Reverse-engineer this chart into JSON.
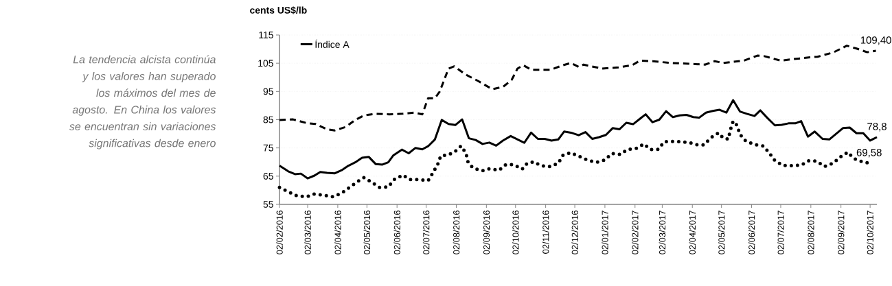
{
  "chart_data": {
    "type": "line",
    "ylabel": "cents US$/lb",
    "annotations": [
      "*La tendencia alcista continúa y los valores han superado los máximos del mes de agosto. En China los valores se encuentran sin variaciones significativas desde enero*",
      {
        "text": "109,40",
        "x": "2017-10-08",
        "y": 109.4
      },
      {
        "text": "78,8",
        "x": "2017-10-09",
        "y": 78.8
      },
      {
        "text": "69,58",
        "x": "2017-10-01",
        "y": 69.58
      }
    ],
    "xlim": [
      "2016-02-02",
      "2017-10-09"
    ],
    "xticks": [
      {
        "value": "2016-02-02",
        "label": "02/02/2016"
      },
      {
        "value": "2016-03-02",
        "label": "02/03/2016"
      },
      {
        "value": "2016-04-02",
        "label": "02/04/2016"
      },
      {
        "value": "2016-05-02",
        "label": "02/05/2016"
      },
      {
        "value": "2016-06-02",
        "label": "02/06/2016"
      },
      {
        "value": "2016-07-02",
        "label": "02/07/2016"
      },
      {
        "value": "2016-08-02",
        "label": "02/08/2016"
      },
      {
        "value": "2016-09-02",
        "label": "02/09/2016"
      },
      {
        "value": "2016-10-02",
        "label": "02/10/2016"
      },
      {
        "value": "2016-11-02",
        "label": "02/11/2016"
      },
      {
        "value": "2016-12-02",
        "label": "02/12/2016"
      },
      {
        "value": "2017-01-02",
        "label": "02/01/2017"
      },
      {
        "value": "2017-02-02",
        "label": "02/02/2017"
      },
      {
        "value": "2017-03-02",
        "label": "02/03/2017"
      },
      {
        "value": "2017-04-02",
        "label": "02/04/2017"
      },
      {
        "value": "2017-05-02",
        "label": "02/05/2017"
      },
      {
        "value": "2017-06-02",
        "label": "02/06/2017"
      },
      {
        "value": "2017-07-02",
        "label": "02/07/2017"
      },
      {
        "value": "2017-08-02",
        "label": "02/08/2017"
      },
      {
        "value": "2017-09-02",
        "label": "02/09/2017"
      },
      {
        "value": "2017-10-02",
        "label": "02/10/2017"
      }
    ],
    "ylim": [
      55,
      115
    ],
    "yticks": [
      55,
      65,
      75,
      85,
      95,
      105,
      115
    ],
    "grid": "y",
    "legend": "top left",
    "series": [
      {
        "name": "Índice A",
        "color": "#000000",
        "line_style": "solid",
        "x": [
          "2016-02-02",
          "2016-02-11",
          "2016-02-18",
          "2016-02-24",
          "2016-03-02",
          "2016-03-09",
          "2016-03-15",
          "2016-03-22",
          "2016-03-30",
          "2016-04-06",
          "2016-04-13",
          "2016-04-20",
          "2016-04-27",
          "2016-05-04",
          "2016-05-11",
          "2016-05-18",
          "2016-05-24",
          "2016-05-29",
          "2016-06-07",
          "2016-06-14",
          "2016-06-21",
          "2016-06-28",
          "2016-07-04",
          "2016-07-11",
          "2016-07-18",
          "2016-07-25",
          "2016-08-01",
          "2016-08-08",
          "2016-08-15",
          "2016-08-22",
          "2016-08-29",
          "2016-09-05",
          "2016-09-12",
          "2016-09-19",
          "2016-09-27",
          "2016-10-04",
          "2016-10-11",
          "2016-10-18",
          "2016-10-25",
          "2016-11-01",
          "2016-11-08",
          "2016-11-15",
          "2016-11-21",
          "2016-11-28",
          "2016-12-06",
          "2016-12-13",
          "2016-12-20",
          "2016-12-27",
          "2017-01-03",
          "2017-01-10",
          "2017-01-17",
          "2017-01-24",
          "2017-01-31",
          "2017-02-07",
          "2017-02-13",
          "2017-02-20",
          "2017-02-27",
          "2017-03-06",
          "2017-03-13",
          "2017-03-20",
          "2017-03-27",
          "2017-04-03",
          "2017-04-09",
          "2017-04-16",
          "2017-04-23",
          "2017-04-30",
          "2017-05-07",
          "2017-05-14",
          "2017-05-21",
          "2017-05-28",
          "2017-06-05",
          "2017-06-11",
          "2017-06-18",
          "2017-06-26",
          "2017-07-03",
          "2017-07-10",
          "2017-07-17",
          "2017-07-23",
          "2017-07-30",
          "2017-08-06",
          "2017-08-14",
          "2017-08-21",
          "2017-08-28",
          "2017-09-04",
          "2017-09-11",
          "2017-09-18",
          "2017-09-25",
          "2017-10-02",
          "2017-10-09"
        ],
        "values": [
          68.7,
          66.7,
          65.7,
          65.9,
          64.2,
          65.2,
          66.5,
          66.2,
          66.0,
          67.1,
          68.7,
          69.9,
          71.5,
          71.8,
          69.3,
          69.1,
          69.9,
          72.3,
          74.4,
          73.1,
          75.0,
          74.5,
          75.6,
          78.0,
          84.9,
          83.5,
          83.1,
          85.1,
          78.4,
          77.8,
          76.4,
          76.9,
          75.8,
          77.6,
          79.2,
          78.0,
          76.8,
          80.4,
          78.2,
          78.2,
          77.6,
          78.0,
          80.8,
          80.4,
          79.5,
          80.6,
          78.2,
          78.8,
          79.6,
          82.0,
          81.6,
          83.9,
          83.4,
          85.3,
          86.9,
          84.1,
          85.0,
          88.0,
          85.9,
          86.5,
          86.7,
          85.9,
          85.7,
          87.5,
          88.1,
          88.5,
          87.5,
          91.9,
          87.9,
          87.1,
          86.3,
          88.3,
          85.7,
          83.0,
          83.2,
          83.7,
          83.7,
          84.5,
          79.0,
          80.8,
          78.2,
          78.0,
          80.0,
          82.0,
          82.2,
          80.2,
          80.2,
          77.6,
          78.8
        ]
      },
      {
        "color": "#000000",
        "line_style": "dashed",
        "x": [
          "2016-02-02",
          "2016-02-16",
          "2016-03-02",
          "2016-03-10",
          "2016-03-22",
          "2016-03-30",
          "2016-04-10",
          "2016-04-20",
          "2016-04-29",
          "2016-05-11",
          "2016-05-25",
          "2016-06-08",
          "2016-06-20",
          "2016-06-28",
          "2016-07-04",
          "2016-07-11",
          "2016-07-16",
          "2016-07-25",
          "2016-07-31",
          "2016-08-11",
          "2016-08-25",
          "2016-09-08",
          "2016-09-19",
          "2016-09-28",
          "2016-10-04",
          "2016-10-10",
          "2016-10-18",
          "2016-11-07",
          "2016-11-20",
          "2016-11-28",
          "2016-12-06",
          "2016-12-11",
          "2016-12-30",
          "2017-01-16",
          "2017-01-30",
          "2017-02-07",
          "2017-02-20",
          "2017-03-11",
          "2017-04-05",
          "2017-04-15",
          "2017-04-25",
          "2017-05-04",
          "2017-05-25",
          "2017-06-08",
          "2017-06-15",
          "2017-07-02",
          "2017-07-16",
          "2017-08-02",
          "2017-08-09",
          "2017-08-25",
          "2017-09-08",
          "2017-09-18",
          "2017-09-29",
          "2017-10-08"
        ],
        "values": [
          84.9,
          85.1,
          83.7,
          83.5,
          81.6,
          81.2,
          82.4,
          84.9,
          86.5,
          87.1,
          86.9,
          87.1,
          87.5,
          86.9,
          92.6,
          92.6,
          95.0,
          103.1,
          103.9,
          101.1,
          98.6,
          95.8,
          96.6,
          99.1,
          103.1,
          104.3,
          102.7,
          102.7,
          104.3,
          105.1,
          103.7,
          104.5,
          103.1,
          103.5,
          104.3,
          105.9,
          105.7,
          105.1,
          104.7,
          104.5,
          105.7,
          105.1,
          105.9,
          107.7,
          107.5,
          105.9,
          106.5,
          107.1,
          107.3,
          108.8,
          111.2,
          110.2,
          108.9,
          109.4
        ]
      },
      {
        "color": "#000000",
        "line_style": "dotted",
        "x": [
          "2016-02-02",
          "2016-02-11",
          "2016-02-20",
          "2016-03-01",
          "2016-03-09",
          "2016-03-19",
          "2016-03-28",
          "2016-04-06",
          "2016-04-14",
          "2016-04-22",
          "2016-04-29",
          "2016-05-07",
          "2016-05-15",
          "2016-05-24",
          "2016-05-30",
          "2016-06-08",
          "2016-06-15",
          "2016-06-25",
          "2016-07-04",
          "2016-07-09",
          "2016-07-14",
          "2016-07-17",
          "2016-07-24",
          "2016-07-31",
          "2016-08-07",
          "2016-08-12",
          "2016-08-14",
          "2016-08-19",
          "2016-08-29",
          "2016-09-05",
          "2016-09-15",
          "2016-09-22",
          "2016-09-30",
          "2016-10-09",
          "2016-10-14",
          "2016-10-21",
          "2016-10-28",
          "2016-11-07",
          "2016-11-15",
          "2016-11-20",
          "2016-11-28",
          "2016-12-06",
          "2016-12-15",
          "2016-12-24",
          "2017-01-02",
          "2017-01-09",
          "2017-01-18",
          "2017-01-25",
          "2017-02-04",
          "2017-02-11",
          "2017-02-18",
          "2017-02-26",
          "2017-03-04",
          "2017-03-11",
          "2017-03-19",
          "2017-03-29",
          "2017-04-07",
          "2017-04-14",
          "2017-04-21",
          "2017-04-29",
          "2017-05-04",
          "2017-05-09",
          "2017-05-11",
          "2017-05-14",
          "2017-05-18",
          "2017-05-21",
          "2017-05-27",
          "2017-06-05",
          "2017-06-14",
          "2017-06-20",
          "2017-06-26",
          "2017-07-04",
          "2017-07-13",
          "2017-07-23",
          "2017-07-31",
          "2017-08-08",
          "2017-08-16",
          "2017-08-25",
          "2017-09-01",
          "2017-09-09",
          "2017-09-15",
          "2017-09-24",
          "2017-10-01"
        ],
        "values": [
          61.0,
          59.5,
          58.0,
          57.7,
          58.7,
          58.2,
          57.7,
          59.0,
          61.0,
          63.0,
          64.5,
          62.8,
          61.0,
          61.2,
          63.8,
          65.4,
          63.8,
          63.8,
          63.4,
          66.2,
          69.3,
          72.2,
          72.5,
          73.5,
          75.7,
          73.1,
          70.1,
          67.9,
          66.9,
          67.6,
          67.1,
          69.1,
          69.1,
          67.5,
          69.6,
          70.1,
          68.7,
          68.4,
          69.6,
          72.5,
          73.3,
          72.1,
          70.7,
          69.9,
          70.7,
          73.0,
          72.7,
          74.4,
          74.9,
          76.4,
          74.4,
          74.5,
          77.2,
          77.3,
          77.2,
          77.0,
          76.1,
          76.1,
          78.6,
          80.3,
          78.4,
          78.1,
          81.2,
          84.5,
          83.0,
          79.8,
          77.4,
          76.2,
          75.7,
          73.3,
          70.5,
          68.8,
          68.7,
          68.9,
          70.5,
          70.3,
          68.4,
          69.6,
          71.7,
          73.5,
          71.3,
          70.1,
          69.58
        ]
      }
    ]
  }
}
